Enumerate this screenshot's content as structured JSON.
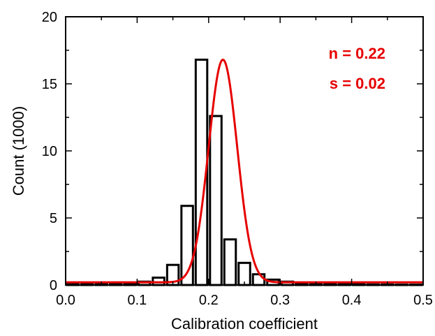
{
  "chart_data": {
    "type": "bar",
    "xlabel": "Calibration coefficient",
    "ylabel": "Count (1000)",
    "xlim": [
      0,
      0.5
    ],
    "ylim": [
      0,
      20
    ],
    "x_ticks": [
      "0.0",
      "0.1",
      "0.2",
      "0.3",
      "0.4",
      "0.5"
    ],
    "y_ticks": [
      "0",
      "5",
      "10",
      "15",
      "20"
    ],
    "bin_width": 0.02,
    "bins": [
      {
        "x": 0.01,
        "value": 0.05
      },
      {
        "x": 0.03,
        "value": 0.05
      },
      {
        "x": 0.05,
        "value": 0.05
      },
      {
        "x": 0.07,
        "value": 0.08
      },
      {
        "x": 0.09,
        "value": 0.12
      },
      {
        "x": 0.11,
        "value": 0.25
      },
      {
        "x": 0.13,
        "value": 0.55
      },
      {
        "x": 0.15,
        "value": 1.5
      },
      {
        "x": 0.17,
        "value": 5.9
      },
      {
        "x": 0.19,
        "value": 16.8
      },
      {
        "x": 0.21,
        "value": 12.6
      },
      {
        "x": 0.23,
        "value": 3.4
      },
      {
        "x": 0.25,
        "value": 1.65
      },
      {
        "x": 0.27,
        "value": 0.8
      },
      {
        "x": 0.29,
        "value": 0.4
      },
      {
        "x": 0.31,
        "value": 0.25
      },
      {
        "x": 0.33,
        "value": 0.15
      },
      {
        "x": 0.35,
        "value": 0.1
      },
      {
        "x": 0.37,
        "value": 0.08
      },
      {
        "x": 0.39,
        "value": 0.05
      },
      {
        "x": 0.41,
        "value": 0.05
      },
      {
        "x": 0.43,
        "value": 0.04
      },
      {
        "x": 0.45,
        "value": 0.04
      },
      {
        "x": 0.47,
        "value": 0.03
      },
      {
        "x": 0.49,
        "value": 0.03
      }
    ],
    "fit": {
      "type": "gaussian",
      "mean": 0.22,
      "sigma": 0.02,
      "amplitude": 16.6,
      "baseline": 0.2,
      "color": "#e60000"
    },
    "annotations": [
      "n = 0.22",
      "s = 0.02"
    ],
    "bar_color": "#000000",
    "grid": false
  }
}
